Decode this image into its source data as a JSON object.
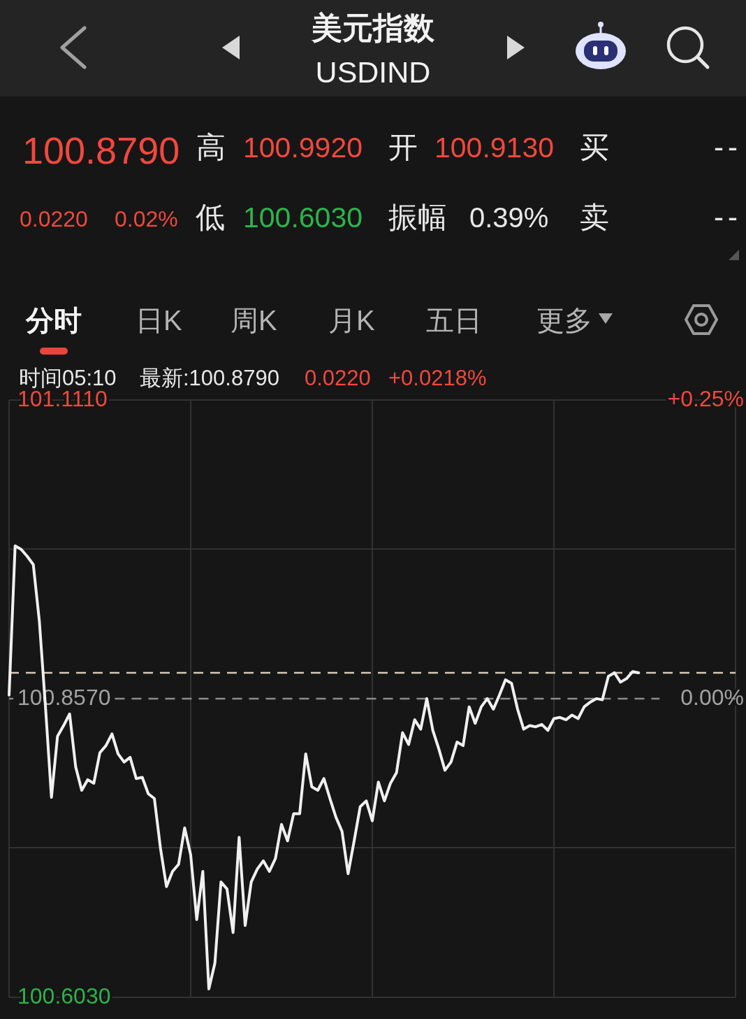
{
  "chart_data": {
    "type": "line",
    "title": "美元指数",
    "subtitle": "USDIND",
    "categories": [
      null,
      null,
      null,
      null,
      null,
      null,
      null,
      null,
      null,
      null,
      null,
      null,
      null,
      null,
      null,
      null,
      null,
      null,
      null,
      null,
      null,
      null,
      null,
      null,
      null,
      null,
      null,
      null,
      null,
      null,
      null,
      null,
      null,
      null,
      null,
      null,
      null,
      null,
      null,
      null,
      null,
      null,
      null,
      null,
      null,
      null,
      null,
      null,
      null,
      null,
      null,
      null,
      null,
      null,
      null,
      null,
      null,
      null,
      null,
      null,
      null,
      null,
      null,
      null,
      null,
      null,
      null,
      null,
      null,
      null,
      null,
      null,
      null,
      null,
      null,
      null,
      null,
      null,
      null,
      null,
      null,
      null,
      null,
      null,
      null,
      null,
      null,
      null,
      null,
      null,
      null,
      null,
      null,
      null,
      null,
      null,
      null,
      null,
      null,
      null,
      null,
      null,
      null,
      null,
      null,
      null,
      null,
      null,
      null,
      null,
      null,
      null,
      null,
      null,
      null,
      null,
      null,
      null,
      null,
      null,
      null
    ],
    "series": [
      {
        "color": "#f0f0f0",
        "values": [
          100.86,
          100.987,
          100.984,
          100.978,
          100.971,
          100.923,
          100.851,
          100.773,
          100.825,
          100.834,
          100.844,
          100.799,
          100.779,
          100.788,
          100.785,
          100.811,
          100.817,
          100.827,
          100.81,
          100.803,
          100.807,
          100.789,
          100.79,
          100.776,
          100.772,
          100.73,
          100.697,
          100.71,
          100.716,
          100.747,
          100.724,
          100.669,
          100.71,
          100.61,
          100.632,
          100.701,
          100.695,
          100.658,
          100.739,
          100.664,
          100.701,
          100.712,
          100.719,
          100.71,
          100.721,
          100.75,
          100.736,
          100.759,
          100.759,
          100.81,
          100.782,
          100.779,
          100.789,
          100.772,
          100.756,
          100.744,
          100.708,
          100.736,
          100.765,
          100.77,
          100.753,
          100.786,
          100.77,
          100.785,
          100.794,
          100.828,
          100.818,
          100.839,
          100.831,
          100.857,
          100.83,
          100.814,
          100.796,
          100.803,
          100.82,
          100.817,
          100.85,
          100.836,
          100.85,
          100.857,
          100.848,
          100.86,
          100.873,
          100.87,
          100.848,
          100.831,
          100.834,
          100.833,
          100.835,
          100.83,
          100.84,
          100.841,
          100.839,
          100.843,
          100.84,
          100.85,
          100.854,
          100.857,
          100.856,
          100.876,
          100.879,
          100.871,
          100.874,
          100.88,
          100.879,
          null,
          null,
          null,
          null,
          null,
          null,
          null,
          null,
          null,
          null,
          null,
          null,
          null,
          null,
          null,
          null
        ]
      }
    ],
    "ylim": [
      100.603,
      101.111
    ],
    "yticks": [
      {
        "value": 101.111,
        "label": "101.1110"
      },
      {
        "value": 100.984,
        "label": null
      },
      {
        "value": 100.857,
        "label": "100.8570"
      },
      {
        "value": 100.73,
        "label": null
      },
      {
        "value": 100.603,
        "label": "100.6030"
      }
    ],
    "y2lim": [
      -0.25,
      0.25
    ],
    "y2ticks": [
      {
        "value": 0.25,
        "label": "+0.25%"
      },
      {
        "value": 0,
        "label": "0.00%"
      }
    ],
    "grid": true,
    "ref_lines": [
      {
        "axis": "y",
        "value": 100.879,
        "color": "#d6c9b5",
        "line_style": "dashed"
      },
      {
        "axis": "y",
        "value": 100.857,
        "color": "#8c8c8c",
        "line_style": "dashed"
      }
    ],
    "annotations": [
      "100.8790",
      "高",
      "100.9920",
      "开",
      "100.9130",
      "买",
      "--",
      "0.0220",
      "0.02%",
      "低",
      "100.6030",
      "振幅",
      "0.39%",
      "卖",
      "--",
      "分时",
      "日K",
      "周K",
      "月K",
      "五日",
      "更多",
      "时间05:10",
      "最新:100.8790",
      "0.0220",
      "+0.0218%"
    ]
  }
}
